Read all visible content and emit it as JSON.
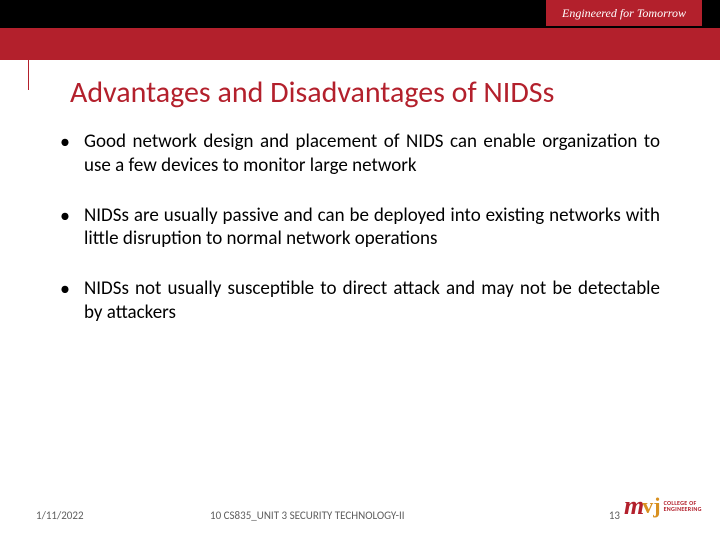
{
  "colors": {
    "brand_red": "#b3202c",
    "brand_gold": "#d89020",
    "black": "#000000",
    "white": "#ffffff",
    "footer_text": "#606060"
  },
  "header": {
    "tagline": "Engineered for Tomorrow"
  },
  "title": "Advantages and Disadvantages of NIDSs",
  "bullets": [
    "Good network design and placement of NIDS can enable organization to use a few devices to monitor large network",
    "NIDSs are usually passive and can be deployed into existing networks with little disruption to normal network operations",
    "NIDSs not usually susceptible to direct attack and may not be detectable by attackers"
  ],
  "footer": {
    "date": "1/11/2022",
    "course": "10 CS835_UNIT 3 SECURITY TECHNOLOGY-II",
    "page": "13"
  },
  "logo": {
    "m": "m",
    "vj": "vj",
    "line1": "COLLEGE OF",
    "line2": "ENGINEERING"
  },
  "typography": {
    "title_fontsize": 30,
    "body_fontsize": 19,
    "footer_fontsize": 11,
    "tagline_fontsize": 12
  }
}
